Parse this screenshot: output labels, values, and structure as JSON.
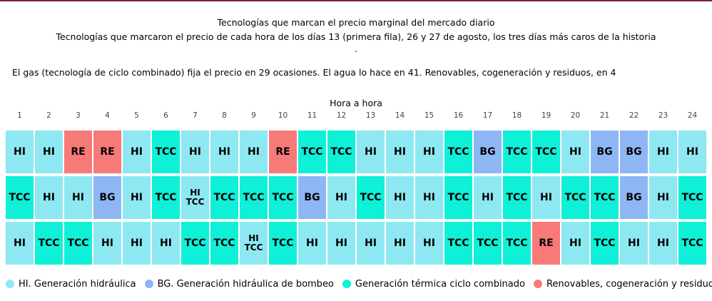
{
  "title": "Tecnologías que marcan el precio marginal del mercado diario",
  "subtitle": "Tecnologías que marcaron el precio de cada hora de los días 13 (primera fila), 26 y 27 de agosto, los tres días más caros de la historia",
  "separator": ".",
  "note": "El gas (tecnología de ciclo combinado) fija el precio en 29 ocasiones. El agua lo hace en 41. Renovables, cogeneración y residuos, en 4",
  "legend": [
    {
      "code": "HI",
      "label": "HI. Generación hidráulica",
      "color": "#8ee8f2"
    },
    {
      "code": "BG",
      "label": "BG. Generación hidráulica de bombeo",
      "color": "#8db6f4"
    },
    {
      "code": "TCC",
      "label": "Generación térmica ciclo combinado",
      "color": "#0ff0d8"
    },
    {
      "code": "RE",
      "label": "Renovables, cogeneración y residuos",
      "color": "#f77a78"
    }
  ],
  "chart_data": {
    "type": "table",
    "xlabel": "Hora a hora",
    "hours": [
      "1",
      "2",
      "3",
      "4",
      "5",
      "6",
      "7",
      "8",
      "9",
      "10",
      "11",
      "12",
      "13",
      "14",
      "15",
      "16",
      "17",
      "18",
      "19",
      "20",
      "21",
      "22",
      "23",
      "24"
    ],
    "rows": [
      [
        "HI",
        "HI",
        "RE",
        "RE",
        "HI",
        "TCC",
        "HI",
        "HI",
        "HI",
        "RE",
        "TCC",
        "TCC",
        "HI",
        "HI",
        "HI",
        "TCC",
        "BG",
        "TCC",
        "TCC",
        "HI",
        "BG",
        "BG",
        "HI",
        "HI"
      ],
      [
        "TCC",
        "HI",
        "HI",
        "BG",
        "HI",
        "TCC",
        "HI TCC",
        "TCC",
        "TCC",
        "TCC",
        "BG",
        "HI",
        "TCC",
        "HI",
        "HI",
        "TCC",
        "HI",
        "TCC",
        "HI",
        "TCC",
        "TCC",
        "BG",
        "HI",
        "TCC"
      ],
      [
        "HI",
        "TCC",
        "TCC",
        "HI",
        "HI",
        "HI",
        "TCC",
        "TCC",
        "HI TCC",
        "TCC",
        "HI",
        "HI",
        "HI",
        "HI",
        "HI",
        "TCC",
        "TCC",
        "TCC",
        "RE",
        "HI",
        "TCC",
        "HI",
        "HI",
        "TCC"
      ]
    ],
    "color_by_code": {
      "HI": "#8ee8f2",
      "BG": "#8db6f4",
      "TCC": "#0ff0d8",
      "RE": "#f77a78",
      "HI TCC": "#8ee8f2"
    }
  }
}
